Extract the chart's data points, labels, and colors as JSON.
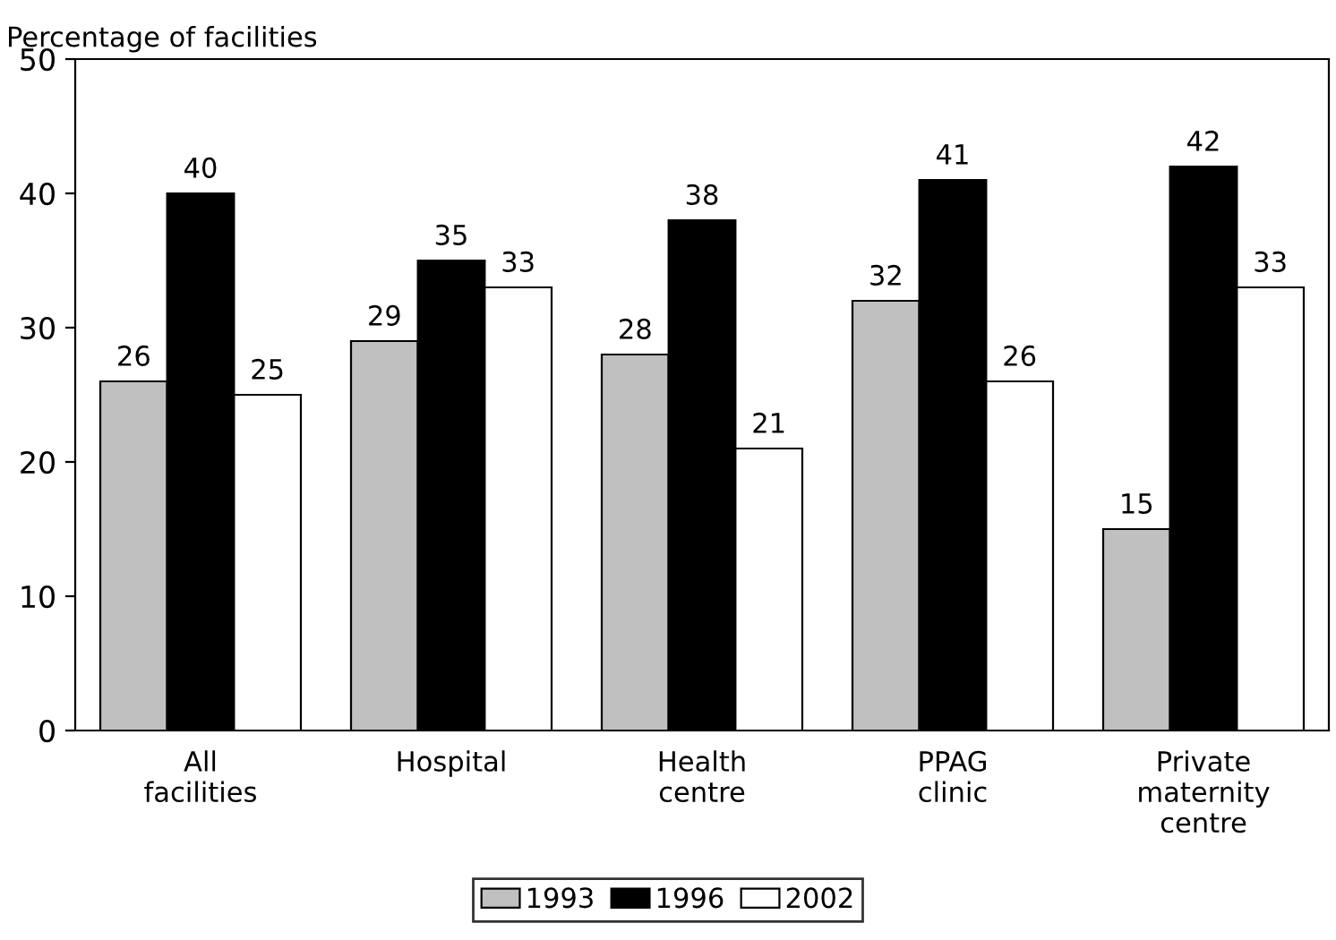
{
  "chart_data": {
    "type": "bar",
    "ylabel": "Percentage of facilities",
    "categories": [
      "All\nfacilities",
      "Hospital",
      "Health\ncentre",
      "PPAG\nclinic",
      "Private\nmaternity\ncentre"
    ],
    "series": [
      {
        "name": "1993",
        "color": "#c0c0c0",
        "values": [
          26,
          29,
          28,
          32,
          15
        ]
      },
      {
        "name": "1996",
        "color": "#000000",
        "values": [
          40,
          35,
          38,
          41,
          42
        ]
      },
      {
        "name": "2002",
        "color": "#ffffff",
        "values": [
          25,
          33,
          21,
          26,
          33
        ]
      }
    ],
    "ylim": [
      0,
      50
    ],
    "yticks": [
      0,
      10,
      20,
      30,
      40,
      50
    ],
    "grid": false,
    "legend": "bottom",
    "data_labels": true
  }
}
